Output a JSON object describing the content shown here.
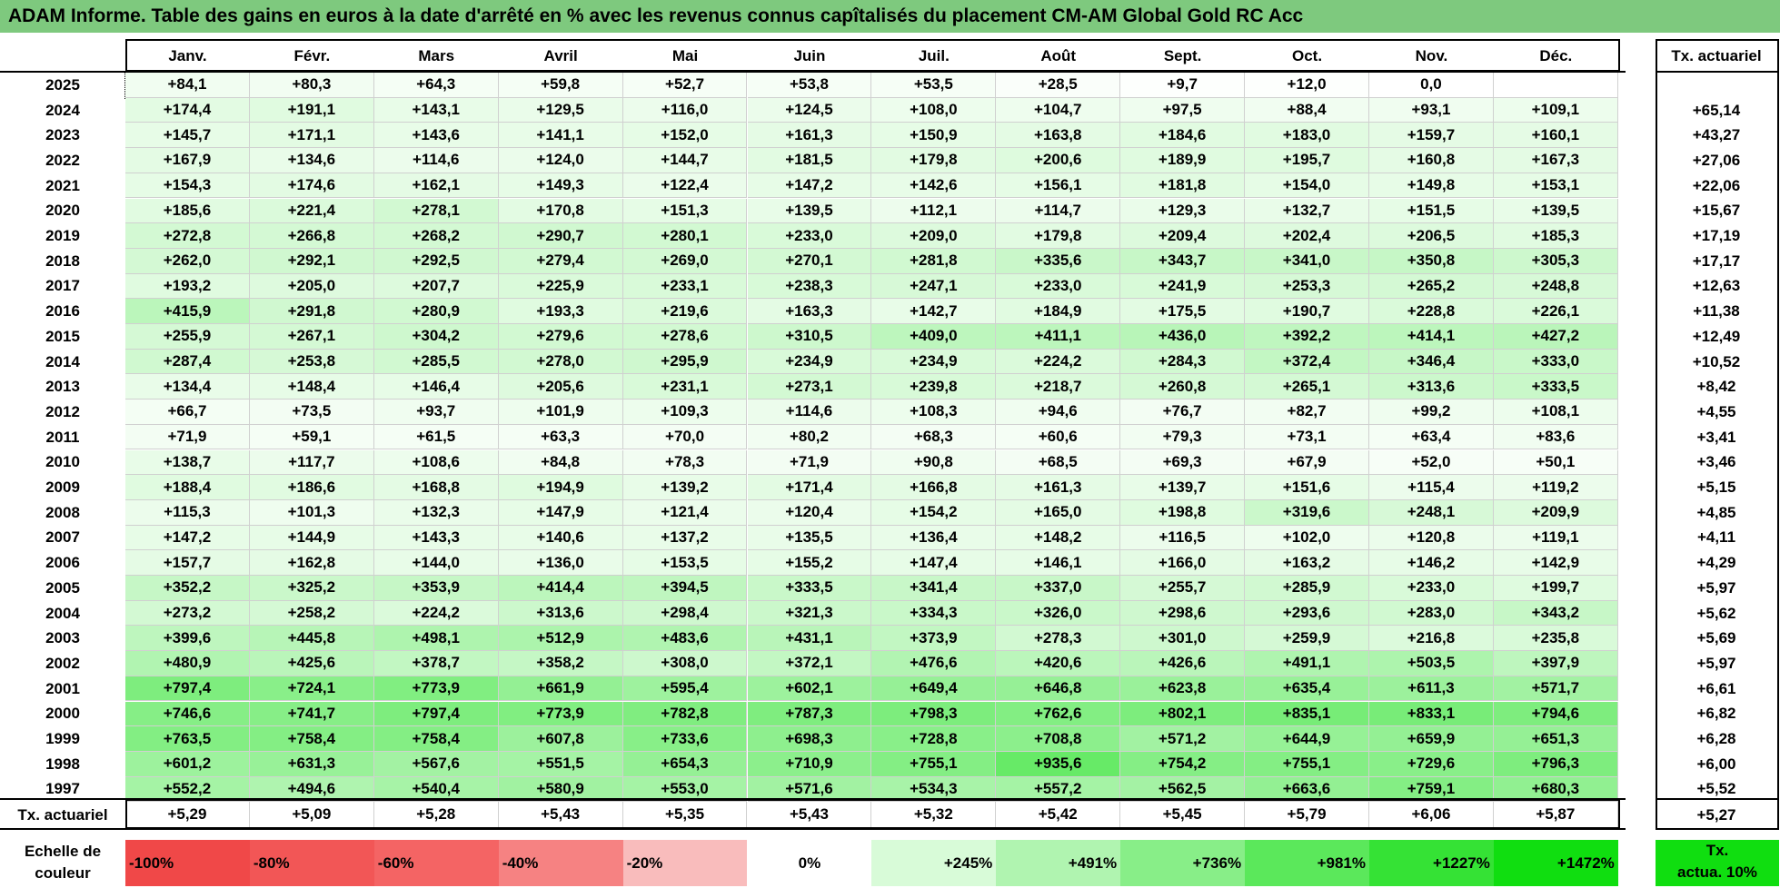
{
  "title": "ADAM Informe. Table des gains en euros à la date d'arrêté en % avec les revenus connus capîtalisés du placement CM-AM Global Gold RC Acc",
  "months": [
    "Janv.",
    "Févr.",
    "Mars",
    "Avril",
    "Mai",
    "Juin",
    "Juil.",
    "Août",
    "Sept.",
    "Oct.",
    "Nov.",
    "Déc."
  ],
  "rate_header": "Tx. actuariel",
  "rows": [
    {
      "year": "2025",
      "values": [
        "+84,1",
        "+80,3",
        "+64,3",
        "+59,8",
        "+52,7",
        "+53,8",
        "+53,5",
        "+28,5",
        "+9,7",
        "+12,0",
        "0,0",
        ""
      ],
      "rate": ""
    },
    {
      "year": "2024",
      "values": [
        "+174,4",
        "+191,1",
        "+143,1",
        "+129,5",
        "+116,0",
        "+124,5",
        "+108,0",
        "+104,7",
        "+97,5",
        "+88,4",
        "+93,1",
        "+109,1"
      ],
      "rate": "+65,14"
    },
    {
      "year": "2023",
      "values": [
        "+145,7",
        "+171,1",
        "+143,6",
        "+141,1",
        "+152,0",
        "+161,3",
        "+150,9",
        "+163,8",
        "+184,6",
        "+183,0",
        "+159,7",
        "+160,1"
      ],
      "rate": "+43,27"
    },
    {
      "year": "2022",
      "values": [
        "+167,9",
        "+134,6",
        "+114,6",
        "+124,0",
        "+144,7",
        "+181,5",
        "+179,8",
        "+200,6",
        "+189,9",
        "+195,7",
        "+160,8",
        "+167,3"
      ],
      "rate": "+27,06"
    },
    {
      "year": "2021",
      "values": [
        "+154,3",
        "+174,6",
        "+162,1",
        "+149,3",
        "+122,4",
        "+147,2",
        "+142,6",
        "+156,1",
        "+181,8",
        "+154,0",
        "+149,8",
        "+153,1"
      ],
      "rate": "+22,06"
    },
    {
      "year": "2020",
      "values": [
        "+185,6",
        "+221,4",
        "+278,1",
        "+170,8",
        "+151,3",
        "+139,5",
        "+112,1",
        "+114,7",
        "+129,3",
        "+132,7",
        "+151,5",
        "+139,5"
      ],
      "rate": "+15,67"
    },
    {
      "year": "2019",
      "values": [
        "+272,8",
        "+266,8",
        "+268,2",
        "+290,7",
        "+280,1",
        "+233,0",
        "+209,0",
        "+179,8",
        "+209,4",
        "+202,4",
        "+206,5",
        "+185,3"
      ],
      "rate": "+17,19"
    },
    {
      "year": "2018",
      "values": [
        "+262,0",
        "+292,1",
        "+292,5",
        "+279,4",
        "+269,0",
        "+270,1",
        "+281,8",
        "+335,6",
        "+343,7",
        "+341,0",
        "+350,8",
        "+305,3"
      ],
      "rate": "+17,17"
    },
    {
      "year": "2017",
      "values": [
        "+193,2",
        "+205,0",
        "+207,7",
        "+225,9",
        "+233,1",
        "+238,3",
        "+247,1",
        "+233,0",
        "+241,9",
        "+253,3",
        "+265,2",
        "+248,8"
      ],
      "rate": "+12,63"
    },
    {
      "year": "2016",
      "values": [
        "+415,9",
        "+291,8",
        "+280,9",
        "+193,3",
        "+219,6",
        "+163,3",
        "+142,7",
        "+184,9",
        "+175,5",
        "+190,7",
        "+228,8",
        "+226,1"
      ],
      "rate": "+11,38"
    },
    {
      "year": "2015",
      "values": [
        "+255,9",
        "+267,1",
        "+304,2",
        "+279,6",
        "+278,6",
        "+310,5",
        "+409,0",
        "+411,1",
        "+436,0",
        "+392,2",
        "+414,1",
        "+427,2"
      ],
      "rate": "+12,49"
    },
    {
      "year": "2014",
      "values": [
        "+287,4",
        "+253,8",
        "+285,5",
        "+278,0",
        "+295,9",
        "+234,9",
        "+234,9",
        "+224,2",
        "+284,3",
        "+372,4",
        "+346,4",
        "+333,0"
      ],
      "rate": "+10,52"
    },
    {
      "year": "2013",
      "values": [
        "+134,4",
        "+148,4",
        "+146,4",
        "+205,6",
        "+231,1",
        "+273,1",
        "+239,8",
        "+218,7",
        "+260,8",
        "+265,1",
        "+313,6",
        "+333,5"
      ],
      "rate": "+8,42"
    },
    {
      "year": "2012",
      "values": [
        "+66,7",
        "+73,5",
        "+93,7",
        "+101,9",
        "+109,3",
        "+114,6",
        "+108,3",
        "+94,6",
        "+76,7",
        "+82,7",
        "+99,2",
        "+108,1"
      ],
      "rate": "+4,55"
    },
    {
      "year": "2011",
      "values": [
        "+71,9",
        "+59,1",
        "+61,5",
        "+63,3",
        "+70,0",
        "+80,2",
        "+68,3",
        "+60,6",
        "+79,3",
        "+73,1",
        "+63,4",
        "+83,6"
      ],
      "rate": "+3,41"
    },
    {
      "year": "2010",
      "values": [
        "+138,7",
        "+117,7",
        "+108,6",
        "+84,8",
        "+78,3",
        "+71,9",
        "+90,8",
        "+68,5",
        "+69,3",
        "+67,9",
        "+52,0",
        "+50,1"
      ],
      "rate": "+3,46"
    },
    {
      "year": "2009",
      "values": [
        "+188,4",
        "+186,6",
        "+168,8",
        "+194,9",
        "+139,2",
        "+171,4",
        "+166,8",
        "+161,3",
        "+139,7",
        "+151,6",
        "+115,4",
        "+119,2"
      ],
      "rate": "+5,15"
    },
    {
      "year": "2008",
      "values": [
        "+115,3",
        "+101,3",
        "+132,3",
        "+147,9",
        "+121,4",
        "+120,4",
        "+154,2",
        "+165,0",
        "+198,8",
        "+319,6",
        "+248,1",
        "+209,9"
      ],
      "rate": "+4,85"
    },
    {
      "year": "2007",
      "values": [
        "+147,2",
        "+144,9",
        "+143,3",
        "+140,6",
        "+137,2",
        "+135,5",
        "+136,4",
        "+148,2",
        "+116,5",
        "+102,0",
        "+120,8",
        "+119,1"
      ],
      "rate": "+4,11"
    },
    {
      "year": "2006",
      "values": [
        "+157,7",
        "+162,8",
        "+144,0",
        "+136,0",
        "+153,5",
        "+155,2",
        "+147,4",
        "+146,1",
        "+166,0",
        "+163,2",
        "+146,2",
        "+142,9"
      ],
      "rate": "+4,29"
    },
    {
      "year": "2005",
      "values": [
        "+352,2",
        "+325,2",
        "+353,9",
        "+414,4",
        "+394,5",
        "+333,5",
        "+341,4",
        "+337,0",
        "+255,7",
        "+285,9",
        "+233,0",
        "+199,7"
      ],
      "rate": "+5,97"
    },
    {
      "year": "2004",
      "values": [
        "+273,2",
        "+258,2",
        "+224,2",
        "+313,6",
        "+298,4",
        "+321,3",
        "+334,3",
        "+326,0",
        "+298,6",
        "+293,6",
        "+283,0",
        "+343,2"
      ],
      "rate": "+5,62"
    },
    {
      "year": "2003",
      "values": [
        "+399,6",
        "+445,8",
        "+498,1",
        "+512,9",
        "+483,6",
        "+431,1",
        "+373,9",
        "+278,3",
        "+301,0",
        "+259,9",
        "+216,8",
        "+235,8"
      ],
      "rate": "+5,69"
    },
    {
      "year": "2002",
      "values": [
        "+480,9",
        "+425,6",
        "+378,7",
        "+358,2",
        "+308,0",
        "+372,1",
        "+476,6",
        "+420,6",
        "+426,6",
        "+491,1",
        "+503,5",
        "+397,9"
      ],
      "rate": "+5,97"
    },
    {
      "year": "2001",
      "values": [
        "+797,4",
        "+724,1",
        "+773,9",
        "+661,9",
        "+595,4",
        "+602,1",
        "+649,4",
        "+646,8",
        "+623,8",
        "+635,4",
        "+611,3",
        "+571,7"
      ],
      "rate": "+6,61"
    },
    {
      "year": "2000",
      "values": [
        "+746,6",
        "+741,7",
        "+797,4",
        "+773,9",
        "+782,8",
        "+787,3",
        "+798,3",
        "+762,6",
        "+802,1",
        "+835,1",
        "+833,1",
        "+794,6"
      ],
      "rate": "+6,82"
    },
    {
      "year": "1999",
      "values": [
        "+763,5",
        "+758,4",
        "+758,4",
        "+607,8",
        "+733,6",
        "+698,3",
        "+728,8",
        "+708,8",
        "+571,2",
        "+644,9",
        "+659,9",
        "+651,3"
      ],
      "rate": "+6,28"
    },
    {
      "year": "1998",
      "values": [
        "+601,2",
        "+631,3",
        "+567,6",
        "+551,5",
        "+654,3",
        "+710,9",
        "+755,1",
        "+935,6",
        "+754,2",
        "+755,1",
        "+729,6",
        "+796,3"
      ],
      "rate": "+6,00"
    },
    {
      "year": "1997",
      "values": [
        "+552,2",
        "+494,6",
        "+540,4",
        "+580,9",
        "+553,0",
        "+571,6",
        "+534,3",
        "+557,2",
        "+562,5",
        "+663,6",
        "+759,1",
        "+680,3"
      ],
      "rate": "+5,52"
    }
  ],
  "summary": {
    "label": "Tx. actuariel",
    "values": [
      "+5,29",
      "+5,09",
      "+5,28",
      "+5,43",
      "+5,35",
      "+5,43",
      "+5,32",
      "+5,42",
      "+5,45",
      "+5,79",
      "+6,06",
      "+5,87"
    ],
    "rate": "+5,27"
  },
  "legend": {
    "label_line1": "Echelle de",
    "label_line2": "couleur",
    "items": [
      {
        "text": "-100%",
        "color": "#f04848"
      },
      {
        "text": "-80%",
        "color": "#f25656"
      },
      {
        "text": "-60%",
        "color": "#f46464"
      },
      {
        "text": "-40%",
        "color": "#f68282"
      },
      {
        "text": "-20%",
        "color": "#f9bcbc"
      },
      {
        "text": "0%",
        "color": "#ffffff"
      },
      {
        "text": "+245%",
        "color": "#d8fbd8"
      },
      {
        "text": "+491%",
        "color": "#b0f4b0"
      },
      {
        "text": "+736%",
        "color": "#88ee88"
      },
      {
        "text": "+981%",
        "color": "#5be85b"
      },
      {
        "text": "+1227%",
        "color": "#35e235"
      },
      {
        "text": "+1472%",
        "color": "#10de10"
      }
    ],
    "rate_line1": "Tx.",
    "rate_line2": "actua. 10%",
    "rate_color": "#10de10"
  },
  "colors": {
    "title_bg": "#7ec97e"
  }
}
